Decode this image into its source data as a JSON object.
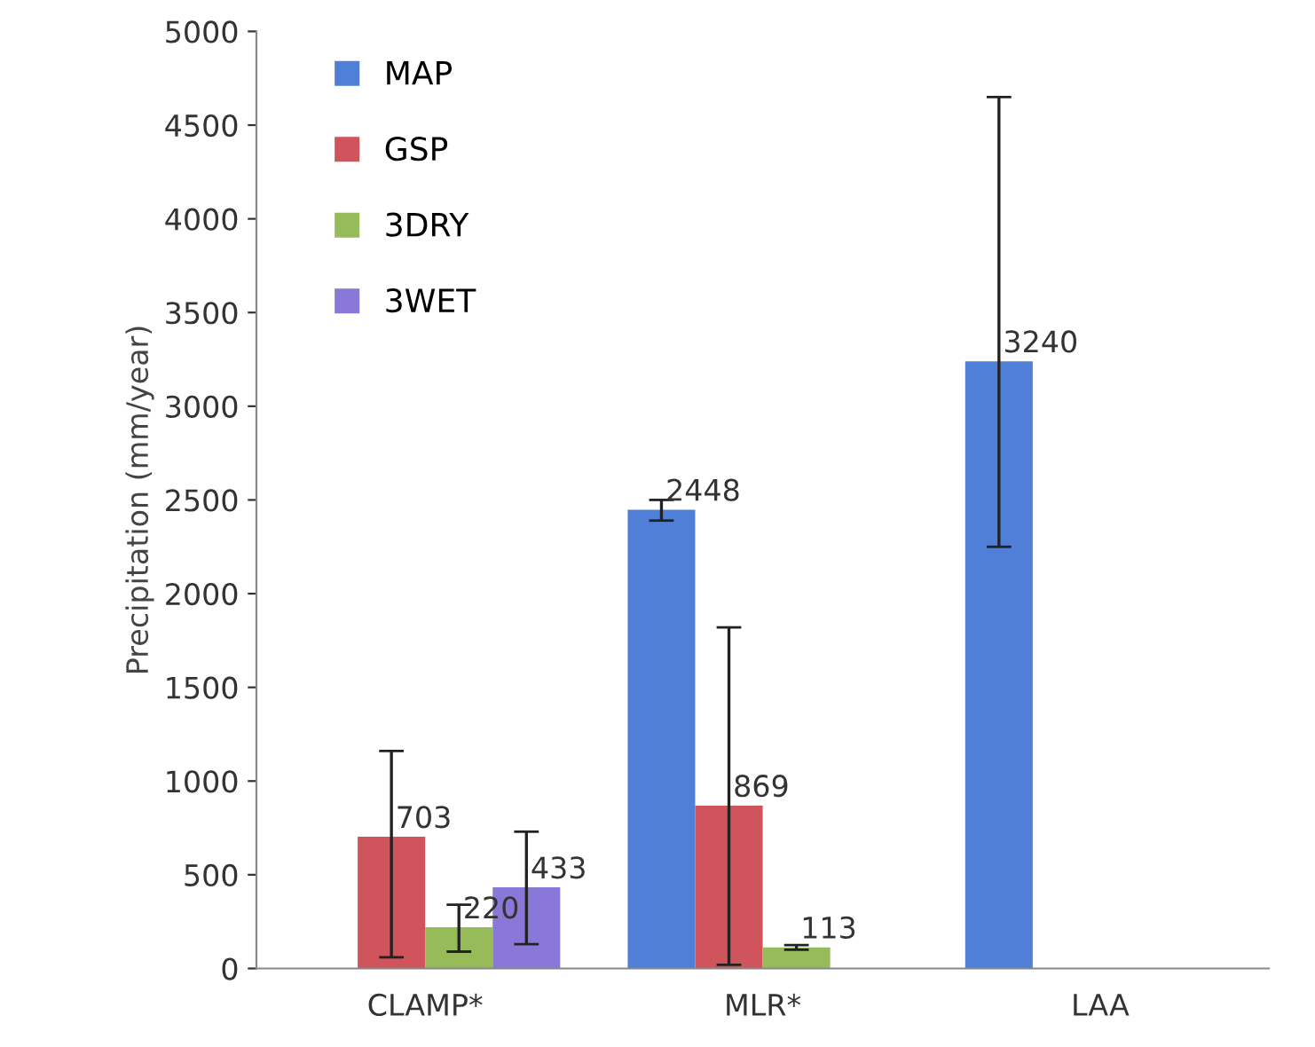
{
  "chart_data": {
    "type": "bar",
    "ylabel": "Precipitation (mm/year)",
    "categories": [
      "CLAMP*",
      "MLR*",
      "LAA"
    ],
    "series": [
      {
        "name": "MAP",
        "color": "#4f7fd6",
        "values": [
          null,
          2448,
          3240
        ],
        "errors": [
          null,
          [
            2390,
            2500
          ],
          [
            2250,
            4650
          ]
        ]
      },
      {
        "name": "GSP",
        "color": "#d0545c",
        "values": [
          703,
          869,
          null
        ],
        "errors": [
          [
            60,
            1160
          ],
          [
            20,
            1820
          ],
          null
        ]
      },
      {
        "name": "3DRY",
        "color": "#98bb5a",
        "values": [
          220,
          113,
          null
        ],
        "errors": [
          [
            90,
            340
          ],
          [
            100,
            125
          ],
          null
        ]
      },
      {
        "name": "3WET",
        "color": "#8a78d8",
        "values": [
          433,
          null,
          null
        ],
        "errors": [
          [
            130,
            730
          ],
          null,
          null
        ]
      }
    ],
    "ylim": [
      0,
      5000
    ],
    "yticks": [
      0,
      500,
      1000,
      1500,
      2000,
      2500,
      3000,
      3500,
      4000,
      4500,
      5000
    ],
    "data_labels": true,
    "legend": "top left",
    "grid": false
  }
}
